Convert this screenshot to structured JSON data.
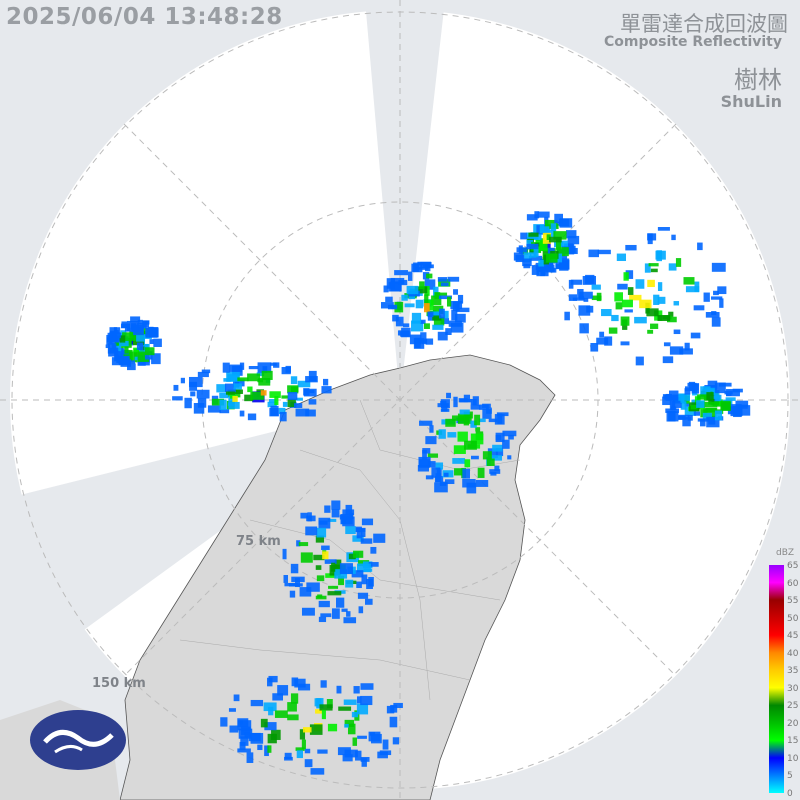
{
  "timestamp": "2025/06/04 13:48:28",
  "title_zh": "單雷達合成回波圖",
  "title_en": "Composite Reflectivity",
  "site_zh": "樹林",
  "site_en": "ShuLin",
  "range_rings": [
    "75 km",
    "150 km"
  ],
  "legend": {
    "unit": "dBZ",
    "ticks": [
      "65",
      "60",
      "55",
      "50",
      "45",
      "40",
      "35",
      "30",
      "25",
      "20",
      "15",
      "10",
      "5",
      "0"
    ],
    "colors": [
      "#00ffff",
      "#0080ff",
      "#0000ff",
      "#00ff00",
      "#00c000",
      "#008800",
      "#ffff00",
      "#ffcc00",
      "#ff8800",
      "#ff0000",
      "#cc0000",
      "#990000",
      "#ff00ff",
      "#9900ff"
    ]
  },
  "logo": "central-weather-administration-logo"
}
